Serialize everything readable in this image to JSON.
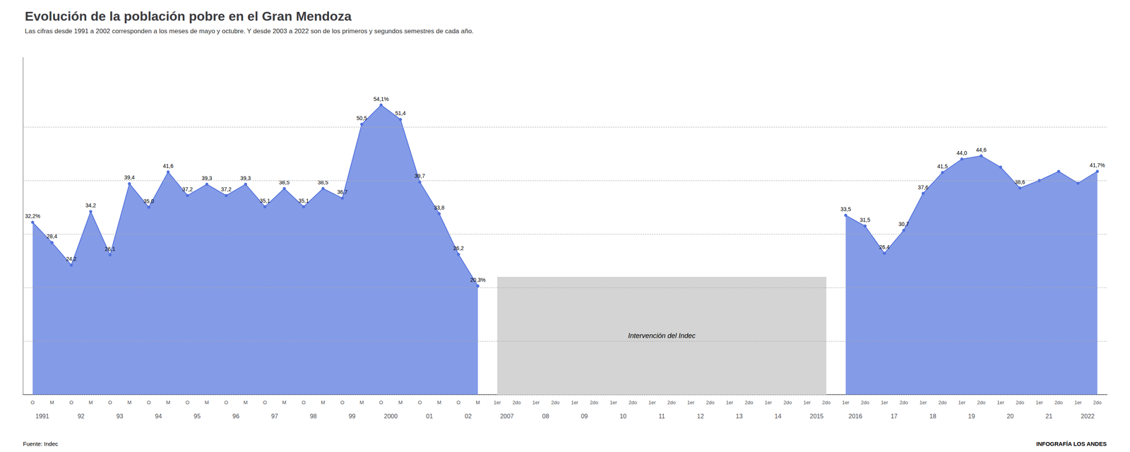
{
  "chart_data": {
    "type": "line",
    "title": "Evolución de la población pobre en el Gran Mendoza",
    "subtitle": "Las cifras desde 1991 a 2002 corresponden a los meses de mayo y octubre. Y desde 2003 a 2022 son de los primeros y segundos semestres de cada año.",
    "source": "Fuente: Indec",
    "brand": "INFOGRAFÍA LOS ANDES",
    "categories": [
      "O",
      "M",
      "O",
      "M",
      "O",
      "M",
      "O",
      "M",
      "O",
      "M",
      "O",
      "M",
      "O",
      "M",
      "O",
      "M",
      "O",
      "M",
      "O",
      "M",
      "O",
      "M",
      "O",
      "M",
      "1er",
      "2do",
      "1er",
      "2do",
      "1er",
      "2do",
      "1er",
      "2do",
      "1er",
      "2do",
      "1er",
      "2do",
      "1er",
      "2do",
      "1er",
      "2do",
      "1er",
      "2do",
      "1er",
      "2do",
      "1er",
      "2do",
      "1er",
      "2do",
      "1er",
      "2do",
      "1er",
      "2do",
      "1er",
      "2do",
      "1er",
      "2do"
    ],
    "year_categories": [
      "1991",
      "92",
      "93",
      "94",
      "95",
      "96",
      "97",
      "98",
      "99",
      "2000",
      "01",
      "02",
      "2007",
      "08",
      "09",
      "10",
      "11",
      "12",
      "13",
      "14",
      "2015",
      "2016",
      "17",
      "18",
      "19",
      "20",
      "21",
      "2022"
    ],
    "values": [
      32.2,
      28.4,
      24.2,
      34.2,
      26.1,
      39.4,
      35.0,
      41.6,
      37.2,
      39.3,
      37.2,
      39.3,
      35.1,
      38.5,
      35.1,
      38.5,
      36.7,
      50.5,
      54.1,
      51.4,
      39.7,
      33.8,
      26.2,
      20.3,
      null,
      null,
      null,
      null,
      null,
      null,
      null,
      null,
      null,
      null,
      null,
      null,
      null,
      null,
      null,
      null,
      null,
      null,
      33.5,
      31.5,
      26.4,
      30.7,
      37.6,
      41.5,
      44.0,
      44.6,
      42.5,
      38.6,
      40.0,
      41.7,
      39.5,
      41.7
    ],
    "value_labels": [
      "32,2%",
      "28,4",
      "24,2",
      "34,2",
      "26,1",
      "39,4",
      "35,0",
      "41,6",
      "37,2",
      "39,3",
      "37,2",
      "39,3",
      "35,1",
      "38,5",
      "35,1",
      "38,5",
      "36,7",
      "50,5",
      "54,1%",
      "51,4",
      "39,7",
      "33,8",
      "26,2",
      "20,3%",
      null,
      null,
      null,
      null,
      null,
      null,
      null,
      null,
      null,
      null,
      null,
      null,
      null,
      null,
      null,
      null,
      null,
      null,
      "33,5",
      "31,5",
      "26,4",
      "30,7",
      "37,6",
      "41,5",
      "44,0",
      "44,6",
      null,
      "38,6",
      null,
      null,
      null,
      "41,7%"
    ],
    "data_labels": true,
    "annotations": [
      {
        "text": "Intervención del Indec",
        "ylim": [
          0,
          22
        ]
      }
    ],
    "ylim": [
      0,
      63
    ],
    "yticks": [
      0,
      10,
      20,
      30,
      40,
      50
    ],
    "grid": true,
    "tick_labels": "x"
  }
}
